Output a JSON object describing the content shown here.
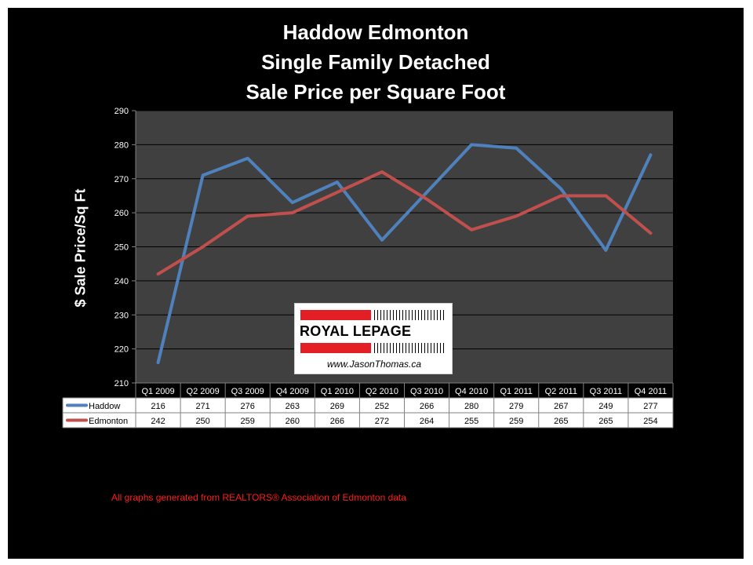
{
  "title_lines": [
    "Haddow Edmonton",
    "Single Family Detached",
    "Sale Price per Square Foot"
  ],
  "footnote": "All graphs generated from REALTORS® Association of Edmonton data",
  "logo": {
    "wordmark": "ROYAL LEPAGE",
    "website": "www.JasonThomas.ca",
    "brand_color": "#e31e24"
  },
  "chart_data": {
    "type": "line",
    "title": "Haddow Edmonton Single Family Detached Sale Price per Square Foot",
    "ylabel": "$ Sale Price/Sq Ft",
    "xlabel": "",
    "categories": [
      "Q1 2009",
      "Q2 2009",
      "Q3 2009",
      "Q4 2009",
      "Q1 2010",
      "Q2 2010",
      "Q3 2010",
      "Q4 2010",
      "Q1 2011",
      "Q2 2011",
      "Q3 2011",
      "Q4 2011"
    ],
    "series": [
      {
        "name": "Haddow",
        "color": "#4f81bd",
        "values": [
          216,
          271,
          276,
          263,
          269,
          252,
          266,
          280,
          279,
          267,
          249,
          277
        ]
      },
      {
        "name": "Edmonton",
        "color": "#c0504d",
        "values": [
          242,
          250,
          259,
          260,
          266,
          272,
          264,
          255,
          259,
          265,
          265,
          254
        ]
      }
    ],
    "ylim": [
      210,
      290
    ],
    "yticks": [
      210,
      220,
      230,
      240,
      250,
      260,
      270,
      280,
      290
    ],
    "grid": true,
    "legend": "data table below chart",
    "plot_background": "#404040",
    "gridline_color": "#000000"
  }
}
